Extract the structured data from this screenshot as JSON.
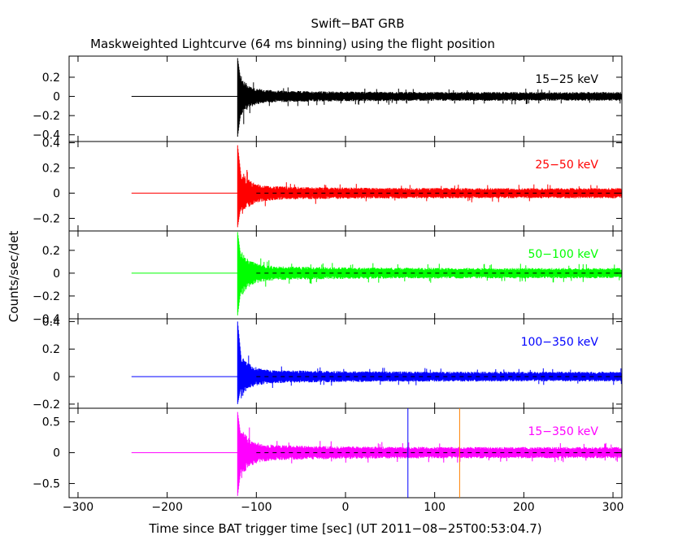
{
  "chart_data": {
    "type": "line",
    "title": "Swift−BAT GRB",
    "subtitle": "Maskweighted Lightcurve (64 ms binning) using the flight position",
    "xlabel": "Time since BAT trigger time [sec] (UT 2011−08−25T00:53:04.7)",
    "ylabel": "Counts/sec/det",
    "xlim": [
      -310,
      310
    ],
    "x_ticks": [
      -300,
      -200,
      -100,
      0,
      100,
      200,
      300
    ],
    "x_tick_labels": [
      "−300",
      "−200",
      "−100",
      "0",
      "100",
      "200",
      "300"
    ],
    "data_start": -240,
    "burst_onset": -121,
    "data_end": 310,
    "markers": [
      {
        "x": 70,
        "color": "#0000ff",
        "panel": "15−350 keV"
      },
      {
        "x": 128,
        "color": "#ff8000",
        "panel": "15−350 keV"
      }
    ],
    "panels": [
      {
        "name": "15−25 keV",
        "color": "#000000",
        "ylim": [
          -0.47,
          0.42
        ],
        "ticks": [
          -0.4,
          -0.2,
          0,
          0.2
        ],
        "tick_labels": [
          "−0.4",
          "−0.2",
          "0",
          "0.2"
        ],
        "noise_amplitude": 0.045,
        "spike_peak": 0.4,
        "spike_trough": -0.42,
        "zero_line": false
      },
      {
        "name": "25−50 keV",
        "color": "#ff0000",
        "ylim": [
          -0.3,
          0.41
        ],
        "ticks": [
          -0.2,
          0,
          0.2,
          0.4
        ],
        "tick_labels": [
          "−0.2",
          "0",
          "0.2",
          "0.4"
        ],
        "noise_amplitude": 0.04,
        "spike_peak": 0.38,
        "spike_trough": -0.27,
        "zero_line": true
      },
      {
        "name": "50−100 keV",
        "color": "#00ff00",
        "ylim": [
          -0.4,
          0.37
        ],
        "ticks": [
          -0.4,
          -0.2,
          0,
          0.2
        ],
        "tick_labels": [
          "−0.4",
          "−0.2",
          "0",
          "0.2"
        ],
        "noise_amplitude": 0.045,
        "spike_peak": 0.36,
        "spike_trough": -0.37,
        "zero_line": true
      },
      {
        "name": "100−350 keV",
        "color": "#0000ff",
        "ylim": [
          -0.23,
          0.42
        ],
        "ticks": [
          -0.2,
          0,
          0.2,
          0.4
        ],
        "tick_labels": [
          "−0.2",
          "0",
          "0.2",
          "0.4"
        ],
        "noise_amplitude": 0.035,
        "spike_peak": 0.4,
        "spike_trough": -0.2,
        "zero_line": true
      },
      {
        "name": "15−350 keV",
        "color": "#ff00ff",
        "ylim": [
          -0.73,
          0.72
        ],
        "ticks": [
          -0.5,
          0,
          0.5
        ],
        "tick_labels": [
          "−0.5",
          "0",
          "0.5"
        ],
        "noise_amplitude": 0.09,
        "spike_peak": 0.66,
        "spike_trough": -0.7,
        "zero_line": true
      }
    ]
  }
}
